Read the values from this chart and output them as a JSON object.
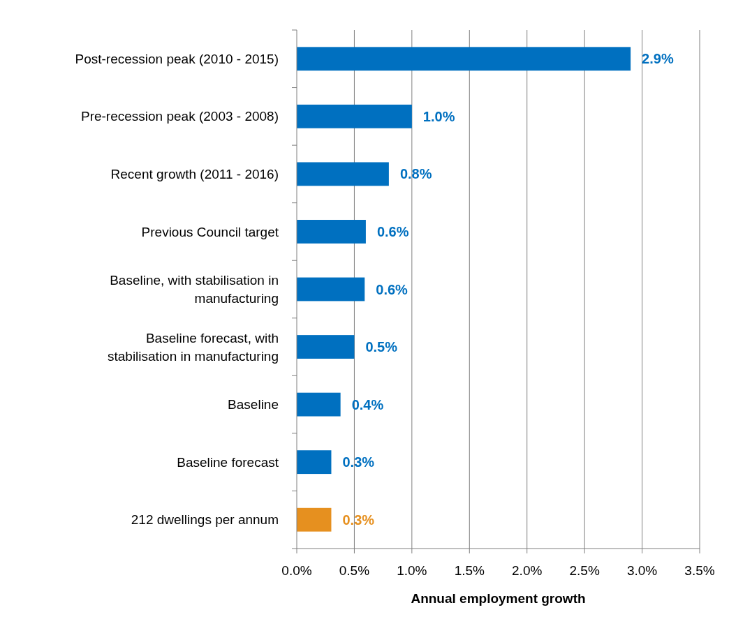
{
  "chart_data": {
    "type": "bar",
    "orientation": "horizontal",
    "xlabel": "Annual employment growth",
    "categories": [
      "Post-recession peak (2010 - 2015)",
      "Pre-recession peak (2003 - 2008)",
      "Recent growth (2011 - 2016)",
      "Previous Council target",
      "Baseline, with stabilisation in manufacturing",
      "Baseline forecast, with stabilisation in manufacturing",
      "Baseline",
      "Baseline forecast",
      "212 dwellings per annum"
    ],
    "values": [
      2.9,
      1.0,
      0.8,
      0.6,
      0.59,
      0.5,
      0.38,
      0.3,
      0.3
    ],
    "colors": [
      "#0070c0",
      "#0070c0",
      "#0070c0",
      "#0070c0",
      "#0070c0",
      "#0070c0",
      "#0070c0",
      "#0070c0",
      "#e6901f"
    ],
    "value_labels": [
      "2.9%",
      "1.0%",
      "0.8%",
      "0.6%",
      "0.6%",
      "0.5%",
      "0.4%",
      "0.3%",
      "0.3%"
    ],
    "xlim": [
      0,
      3.5
    ],
    "xticks": [
      {
        "value": 0,
        "label": "0.0%"
      },
      {
        "value": 0.5,
        "label": "0.5%"
      },
      {
        "value": 1,
        "label": "1.0%"
      },
      {
        "value": 1.5,
        "label": "1.5%"
      },
      {
        "value": 2,
        "label": "2.0%"
      },
      {
        "value": 2.5,
        "label": "2.5%"
      },
      {
        "value": 3,
        "label": "3.0%"
      },
      {
        "value": 3.5,
        "label": "3.5%"
      }
    ],
    "grid": "x"
  }
}
